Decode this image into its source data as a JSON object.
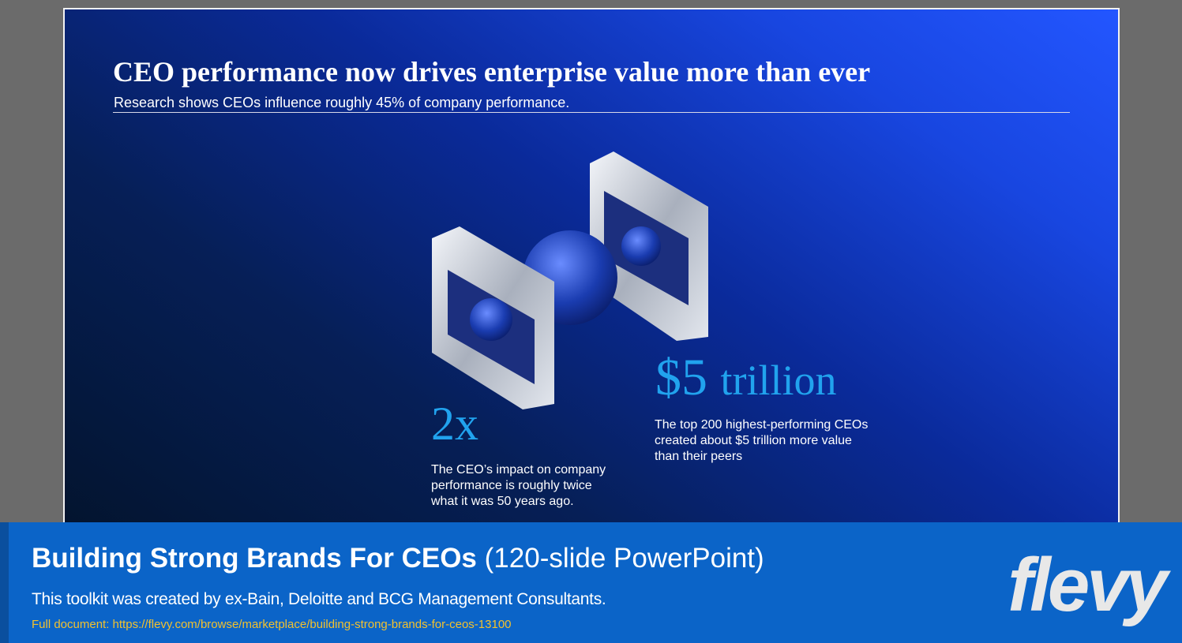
{
  "slide": {
    "title": "CEO performance now drives enterprise value more than ever",
    "subtitle": "Research shows CEOs influence roughly 45% of company performance.",
    "stats": [
      {
        "value": "2x",
        "text": "The CEO’s impact on company performance is roughly twice what it was 50 years ago."
      },
      {
        "value": "$5",
        "unit": "trillion",
        "text": "The top 200 highest-performing CEOs created about $5 trillion more value than their peers"
      }
    ]
  },
  "banner": {
    "title": "Building Strong Brands For CEOs",
    "title_note": "(120-slide PowerPoint)",
    "description": "This toolkit was created by ex-Bain, Deloitte and BCG Management Consultants.",
    "link": "Full document: https://flevy.com/browse/marketplace/building-strong-brands-for-ceos-13100"
  },
  "logo": "flevy"
}
